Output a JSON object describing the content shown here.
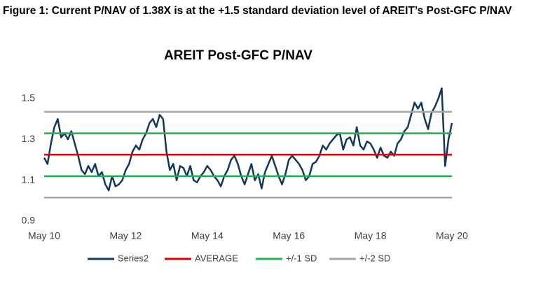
{
  "caption": "Figure 1: Current P/NAV of 1.38X is at the +1.5 standard deviation level of AREIT’s Post-GFC P/NAV",
  "chart_data": {
    "type": "line",
    "title": "AREIT Post-GFC P/NAV",
    "x_start": "2010-05",
    "xlim": [
      "2010-05",
      "2020-05"
    ],
    "xticks": [
      {
        "value": "2010-05",
        "label": "May 10"
      },
      {
        "value": "2012-05",
        "label": "May 12"
      },
      {
        "value": "2014-05",
        "label": "May 14"
      },
      {
        "value": "2016-05",
        "label": "May 16"
      },
      {
        "value": "2018-05",
        "label": "May 18"
      },
      {
        "value": "2020-05",
        "label": "May 20"
      }
    ],
    "ylim": [
      0.9,
      1.6
    ],
    "yticks": [
      0.9,
      1.1,
      1.3,
      1.5
    ],
    "series": [
      {
        "name": "Series2",
        "color": "#12395b",
        "values": [
          1.21,
          1.18,
          1.28,
          1.36,
          1.4,
          1.31,
          1.33,
          1.3,
          1.34,
          1.28,
          1.22,
          1.15,
          1.13,
          1.17,
          1.14,
          1.18,
          1.12,
          1.14,
          1.08,
          1.05,
          1.12,
          1.07,
          1.08,
          1.1,
          1.15,
          1.18,
          1.24,
          1.27,
          1.25,
          1.3,
          1.33,
          1.38,
          1.4,
          1.36,
          1.42,
          1.4,
          1.24,
          1.15,
          1.18,
          1.1,
          1.17,
          1.16,
          1.12,
          1.17,
          1.1,
          1.09,
          1.12,
          1.14,
          1.17,
          1.15,
          1.12,
          1.1,
          1.07,
          1.12,
          1.15,
          1.2,
          1.22,
          1.18,
          1.12,
          1.08,
          1.13,
          1.18,
          1.1,
          1.13,
          1.06,
          1.14,
          1.18,
          1.22,
          1.17,
          1.12,
          1.08,
          1.13,
          1.2,
          1.22,
          1.2,
          1.18,
          1.15,
          1.1,
          1.12,
          1.18,
          1.19,
          1.22,
          1.27,
          1.25,
          1.28,
          1.3,
          1.32,
          1.33,
          1.25,
          1.3,
          1.31,
          1.27,
          1.36,
          1.27,
          1.25,
          1.29,
          1.28,
          1.25,
          1.21,
          1.26,
          1.22,
          1.21,
          1.24,
          1.22,
          1.28,
          1.3,
          1.34,
          1.36,
          1.42,
          1.48,
          1.45,
          1.48,
          1.4,
          1.35,
          1.43,
          1.46,
          1.5,
          1.55,
          1.17,
          1.3,
          1.38
        ]
      },
      {
        "name": "AVERAGE",
        "color": "#e00000",
        "values": [
          1.225
        ]
      },
      {
        "name": "+/-1 SD",
        "color": "#22b14c",
        "values": [
          1.12,
          1.33
        ]
      },
      {
        "name": "+/-2 SD",
        "color": "#a6a6a6",
        "values": [
          1.015,
          1.435
        ]
      }
    ]
  }
}
